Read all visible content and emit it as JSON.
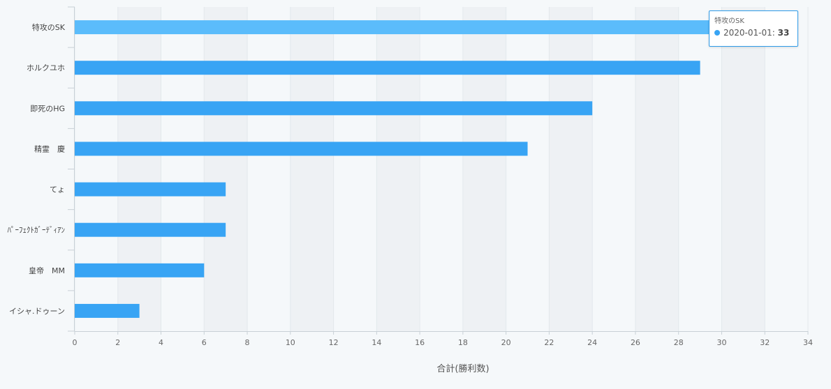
{
  "chart_data": {
    "type": "bar",
    "orientation": "horizontal",
    "categories": [
      "特攻のSK",
      "ホルクユホ",
      "即死のHG",
      "精霊　慶",
      "てょ",
      "ﾊﾟｰﾌｪｸﾄｶﾞｰﾃﾞｨｱﾝ",
      "皇帝　MM",
      "イシャ.ドゥーン"
    ],
    "series": [
      {
        "name": "2020-01-01",
        "values": [
          33,
          29,
          24,
          21,
          7,
          7,
          6,
          3
        ]
      }
    ],
    "xlabel": "合計(勝利数)",
    "ylabel": "",
    "xlim": [
      0,
      34
    ],
    "xticks": [
      0,
      2,
      4,
      6,
      8,
      10,
      12,
      14,
      16,
      18,
      20,
      22,
      24,
      26,
      28,
      30,
      32,
      34
    ],
    "grid": "vertical alternating bands",
    "colors": {
      "bar": "#38a4f4",
      "bar_highlight": "#5bbcfb",
      "band": "#eef1f4",
      "background": "#f5f8fa"
    },
    "highlighted_category": "特攻のSK"
  },
  "tooltip": {
    "title": "特攻のSK",
    "label": "2020-01-01: ",
    "value": "33"
  }
}
